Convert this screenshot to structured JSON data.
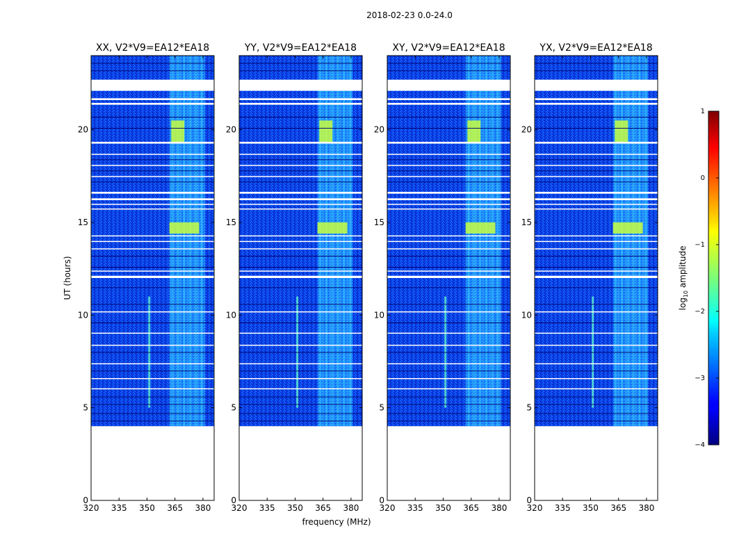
{
  "suptitle": "2018-02-23 0.0-24.0",
  "chart_data": {
    "type": "heatmap",
    "xlabel": "frequency (MHz)",
    "ylabel": "UT (hours)",
    "xlim": [
      320,
      386
    ],
    "ylim": [
      0,
      24
    ],
    "xticks": [
      320,
      335,
      350,
      365,
      380
    ],
    "yticks": [
      0,
      5,
      10,
      15,
      20
    ],
    "data_extent_ut": [
      4.0,
      24.0
    ],
    "flagged_ut_ranges": [
      [
        0,
        4.0
      ],
      [
        22.1,
        22.7
      ],
      [
        21.35,
        21.45
      ],
      [
        21.6,
        21.7
      ],
      [
        19.25,
        19.35
      ],
      [
        16.55,
        16.65
      ],
      [
        16.2,
        16.3
      ],
      [
        15.7,
        15.75
      ],
      [
        13.95,
        14.0
      ],
      [
        12.0,
        12.12
      ],
      [
        9.0,
        9.05
      ],
      [
        6.0,
        6.05
      ]
    ],
    "features": [
      {
        "kind": "rfi_band",
        "freq_mhz": [
          362,
          381
        ],
        "ut_hours": [
          4,
          24
        ]
      },
      {
        "kind": "rfi_line",
        "freq_mhz": 351,
        "ut_hours": [
          5,
          11
        ]
      },
      {
        "kind": "rfi_hotspot",
        "freq_mhz": [
          362,
          378
        ],
        "ut_hours": [
          14.4,
          15.0
        ]
      },
      {
        "kind": "rfi_hotspot",
        "freq_mhz": [
          363,
          370
        ],
        "ut_hours": [
          19.3,
          20.5
        ]
      }
    ],
    "panels": [
      {
        "title": "XX, V2*V9=EA12*EA18"
      },
      {
        "title": "YY, V2*V9=EA12*EA18"
      },
      {
        "title": "XY, V2*V9=EA12*EA18"
      },
      {
        "title": "YX, V2*V9=EA12*EA18"
      }
    ],
    "colorbar": {
      "label": "log",
      "label_sub": "10",
      "label_rest": " amplitude",
      "range": [
        -4,
        1
      ],
      "ticks": [
        "1",
        "0",
        "−1",
        "−2",
        "−3",
        "−4"
      ],
      "colormap": "jet"
    }
  }
}
